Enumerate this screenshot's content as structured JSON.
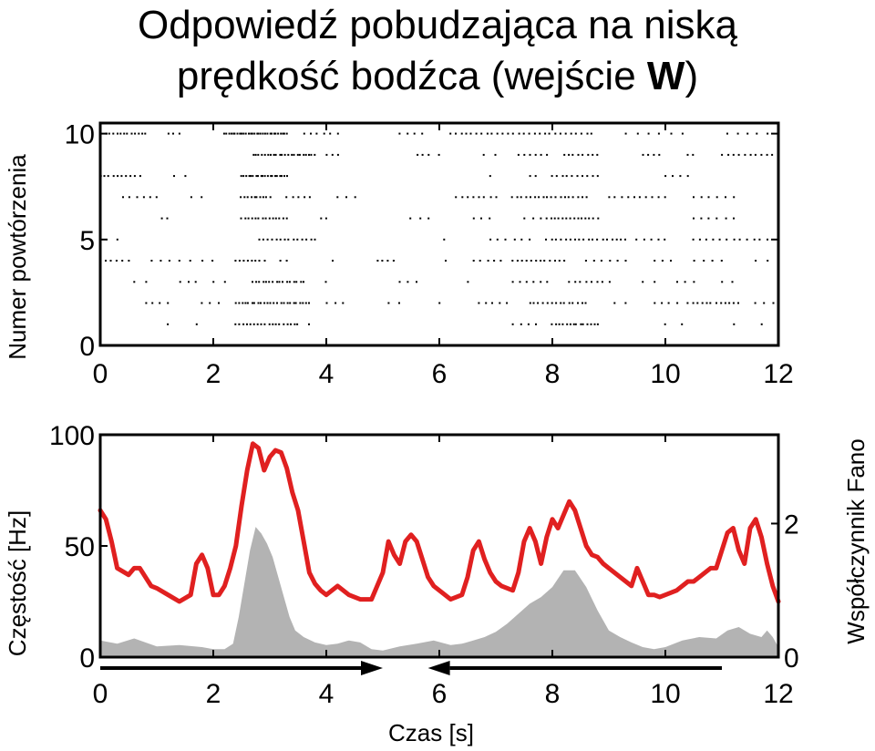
{
  "title": {
    "line1": "Odpowiedź pobudzająca na niską",
    "line2_main": "prędkość bodźca  (wejście ",
    "line2_bold": "W",
    "line2_end": ")"
  },
  "colors": {
    "rate_line": "#e02020",
    "fano_fill": "#b3b3b3",
    "spike": "#000000",
    "arrow": "#000000"
  },
  "chart_data": [
    {
      "type": "scatter",
      "title": "",
      "ylabel": "Numer powtórzenia",
      "xlim": [
        0,
        12
      ],
      "ylim": [
        0,
        10.5
      ],
      "xticks": [
        "0",
        "2",
        "4",
        "6",
        "8",
        "10",
        "12"
      ],
      "yticks": [
        "0",
        "5",
        "10"
      ],
      "yticks_values": [
        0,
        5,
        10
      ],
      "trials": [
        {
          "trial": 10,
          "bursts": [
            [
              0.1,
              0.8,
              12
            ],
            [
              1.2,
              1.4,
              3
            ],
            [
              2.2,
              3.3,
              30
            ],
            [
              3.6,
              4.2,
              6
            ],
            [
              5.3,
              5.7,
              4
            ],
            [
              6.2,
              8.7,
              28
            ],
            [
              9.3,
              9.9,
              4
            ],
            [
              10.1,
              10.3,
              2
            ],
            [
              11.1,
              11.8,
              5
            ]
          ]
        },
        {
          "trial": 9,
          "bursts": [
            [
              2.7,
              3.8,
              22
            ],
            [
              4.0,
              4.2,
              3
            ],
            [
              5.6,
              5.8,
              3
            ],
            [
              6.0,
              6.1,
              1
            ],
            [
              6.8,
              7.0,
              2
            ],
            [
              7.4,
              7.9,
              6
            ],
            [
              8.2,
              8.8,
              8
            ],
            [
              9.6,
              9.9,
              4
            ],
            [
              10.4,
              10.5,
              2
            ],
            [
              11.0,
              11.9,
              10
            ]
          ]
        },
        {
          "trial": 8,
          "bursts": [
            [
              0.0,
              0.7,
              10
            ],
            [
              1.3,
              1.5,
              2
            ],
            [
              2.5,
              3.3,
              20
            ],
            [
              6.9,
              7.0,
              1
            ],
            [
              7.6,
              7.7,
              2
            ],
            [
              8.0,
              8.8,
              10
            ],
            [
              10.0,
              10.4,
              4
            ]
          ]
        },
        {
          "trial": 7,
          "bursts": [
            [
              0.4,
              1.0,
              6
            ],
            [
              1.6,
              1.8,
              2
            ],
            [
              2.5,
              3.0,
              10
            ],
            [
              3.3,
              3.7,
              5
            ],
            [
              4.2,
              4.5,
              3
            ],
            [
              6.3,
              7.0,
              8
            ],
            [
              7.3,
              8.6,
              18
            ],
            [
              9.0,
              10.0,
              10
            ],
            [
              10.5,
              11.2,
              6
            ]
          ]
        },
        {
          "trial": 6,
          "bursts": [
            [
              1.1,
              1.2,
              2
            ],
            [
              2.5,
              3.3,
              14
            ],
            [
              3.9,
              4.0,
              2
            ],
            [
              5.5,
              5.8,
              3
            ],
            [
              6.6,
              6.9,
              3
            ],
            [
              7.5,
              7.8,
              3
            ],
            [
              7.9,
              8.8,
              14
            ],
            [
              10.5,
              11.2,
              6
            ]
          ]
        },
        {
          "trial": 5,
          "bursts": [
            [
              0.3,
              0.4,
              1
            ],
            [
              2.8,
              3.8,
              14
            ],
            [
              6.1,
              6.2,
              1
            ],
            [
              6.9,
              7.6,
              6
            ],
            [
              7.9,
              9.3,
              18
            ],
            [
              9.5,
              10.0,
              5
            ],
            [
              10.5,
              11.8,
              12
            ]
          ]
        },
        {
          "trial": 4,
          "bursts": [
            [
              0.0,
              0.5,
              6
            ],
            [
              0.9,
              1.4,
              4
            ],
            [
              1.6,
              2.0,
              3
            ],
            [
              2.4,
              2.9,
              8
            ],
            [
              3.2,
              3.3,
              2
            ],
            [
              4.1,
              4.2,
              1
            ],
            [
              4.9,
              5.2,
              4
            ],
            [
              6.1,
              6.2,
              1
            ],
            [
              6.6,
              7.1,
              5
            ],
            [
              7.3,
              8.2,
              12
            ],
            [
              8.6,
              9.3,
              6
            ],
            [
              9.8,
              10.1,
              3
            ],
            [
              10.5,
              11.0,
              4
            ],
            [
              11.6,
              11.8,
              2
            ]
          ]
        },
        {
          "trial": 3,
          "bursts": [
            [
              0.6,
              0.8,
              2
            ],
            [
              1.4,
              1.7,
              3
            ],
            [
              2.0,
              2.2,
              2
            ],
            [
              2.7,
              3.6,
              16
            ],
            [
              4.0,
              4.1,
              1
            ],
            [
              5.3,
              5.6,
              3
            ],
            [
              6.5,
              6.6,
              1
            ],
            [
              7.3,
              7.9,
              6
            ],
            [
              8.3,
              9.0,
              8
            ],
            [
              9.6,
              9.8,
              2
            ],
            [
              10.2,
              10.5,
              3
            ],
            [
              11.0,
              11.2,
              2
            ]
          ]
        },
        {
          "trial": 2,
          "bursts": [
            [
              0.8,
              1.2,
              4
            ],
            [
              1.8,
              2.1,
              3
            ],
            [
              2.4,
              3.7,
              24
            ],
            [
              4.0,
              4.3,
              3
            ],
            [
              5.1,
              5.3,
              2
            ],
            [
              6.0,
              6.1,
              1
            ],
            [
              6.7,
              7.2,
              5
            ],
            [
              7.6,
              8.6,
              14
            ],
            [
              9.1,
              9.3,
              2
            ],
            [
              9.8,
              10.2,
              4
            ],
            [
              10.4,
              11.3,
              12
            ],
            [
              11.6,
              11.9,
              3
            ]
          ]
        },
        {
          "trial": 1,
          "bursts": [
            [
              1.2,
              1.3,
              1
            ],
            [
              1.7,
              1.8,
              1
            ],
            [
              2.4,
              3.5,
              18
            ],
            [
              3.7,
              3.8,
              1
            ],
            [
              7.3,
              7.7,
              4
            ],
            [
              8.0,
              8.8,
              14
            ],
            [
              10.0,
              10.1,
              1
            ],
            [
              10.3,
              10.4,
              1
            ],
            [
              11.2,
              11.3,
              1
            ],
            [
              11.7,
              11.8,
              1
            ]
          ]
        }
      ]
    },
    {
      "type": "line",
      "title": "",
      "xlabel": "Czas [s]",
      "ylabel": "Częstość [Hz]",
      "y2label": "Współczynnik Fano",
      "xlim": [
        0,
        12
      ],
      "ylim": [
        0,
        100
      ],
      "y2lim": [
        0,
        3.33
      ],
      "xticks": [
        "0",
        "2",
        "4",
        "6",
        "8",
        "10",
        "12"
      ],
      "yticks": [
        "0",
        "50",
        "100"
      ],
      "yticks_values": [
        0,
        50,
        100
      ],
      "y2ticks": [
        "0",
        "2"
      ],
      "y2ticks_values": [
        0,
        2
      ],
      "series": [
        {
          "kind": "rate_line",
          "x": [
            0.0,
            0.1,
            0.2,
            0.3,
            0.5,
            0.6,
            0.7,
            0.8,
            0.9,
            1.0,
            1.2,
            1.4,
            1.6,
            1.7,
            1.8,
            1.9,
            2.0,
            2.1,
            2.2,
            2.3,
            2.4,
            2.5,
            2.6,
            2.7,
            2.8,
            2.9,
            3.0,
            3.1,
            3.2,
            3.3,
            3.4,
            3.5,
            3.6,
            3.7,
            3.8,
            3.9,
            4.0,
            4.2,
            4.4,
            4.6,
            4.8,
            5.0,
            5.1,
            5.2,
            5.3,
            5.4,
            5.5,
            5.6,
            5.7,
            5.8,
            5.9,
            6.0,
            6.2,
            6.4,
            6.5,
            6.6,
            6.7,
            6.8,
            6.9,
            7.0,
            7.1,
            7.3,
            7.4,
            7.5,
            7.6,
            7.7,
            7.8,
            7.9,
            8.0,
            8.1,
            8.2,
            8.3,
            8.4,
            8.5,
            8.6,
            8.7,
            8.8,
            8.9,
            9.0,
            9.2,
            9.4,
            9.5,
            9.6,
            9.7,
            9.8,
            9.9,
            10.0,
            10.2,
            10.4,
            10.5,
            10.6,
            10.7,
            10.8,
            10.9,
            11.0,
            11.1,
            11.2,
            11.3,
            11.4,
            11.5,
            11.6,
            11.7,
            11.8,
            11.9,
            12.0
          ],
          "y": [
            66,
            62,
            52,
            40,
            37,
            40,
            40,
            36,
            32,
            31,
            28,
            25,
            28,
            42,
            46,
            40,
            28,
            28,
            32,
            40,
            50,
            68,
            84,
            96,
            94,
            84,
            90,
            93,
            92,
            85,
            74,
            66,
            52,
            38,
            33,
            30,
            28,
            32,
            28,
            26,
            26,
            38,
            52,
            46,
            42,
            52,
            55,
            52,
            44,
            36,
            32,
            30,
            26,
            28,
            36,
            48,
            52,
            44,
            38,
            34,
            32,
            30,
            38,
            52,
            58,
            52,
            42,
            54,
            62,
            58,
            64,
            70,
            66,
            58,
            50,
            46,
            45,
            42,
            40,
            36,
            32,
            40,
            34,
            28,
            28,
            27,
            28,
            30,
            34,
            34,
            36,
            38,
            40,
            40,
            48,
            56,
            58,
            48,
            42,
            58,
            62,
            54,
            42,
            32,
            25
          ]
        },
        {
          "kind": "fano_area",
          "x": [
            0.0,
            0.3,
            0.6,
            1.0,
            1.4,
            1.8,
            2.0,
            2.2,
            2.35,
            2.45,
            2.55,
            2.65,
            2.75,
            2.85,
            2.95,
            3.05,
            3.15,
            3.25,
            3.35,
            3.45,
            3.6,
            3.8,
            4.0,
            4.2,
            4.4,
            4.6,
            4.8,
            5.0,
            5.3,
            5.6,
            5.9,
            6.2,
            6.4,
            6.6,
            6.8,
            7.0,
            7.2,
            7.4,
            7.6,
            7.8,
            8.0,
            8.2,
            8.4,
            8.6,
            8.8,
            9.0,
            9.2,
            9.4,
            9.6,
            9.8,
            10.0,
            10.3,
            10.6,
            10.9,
            11.1,
            11.3,
            11.5,
            11.7,
            11.8,
            11.9,
            12.0
          ],
          "y": [
            0.25,
            0.2,
            0.28,
            0.16,
            0.18,
            0.15,
            0.12,
            0.12,
            0.2,
            0.6,
            1.1,
            1.6,
            1.95,
            1.85,
            1.7,
            1.5,
            1.2,
            0.9,
            0.6,
            0.4,
            0.3,
            0.22,
            0.18,
            0.2,
            0.25,
            0.22,
            0.12,
            0.1,
            0.16,
            0.2,
            0.25,
            0.18,
            0.2,
            0.25,
            0.3,
            0.38,
            0.5,
            0.65,
            0.8,
            0.9,
            1.05,
            1.3,
            1.3,
            1.05,
            0.7,
            0.4,
            0.3,
            0.22,
            0.15,
            0.12,
            0.15,
            0.25,
            0.3,
            0.28,
            0.4,
            0.45,
            0.35,
            0.3,
            0.4,
            0.3,
            0.15
          ]
        }
      ],
      "arrows": [
        {
          "from": 0,
          "to": 5.0
        },
        {
          "from": 11.0,
          "to": 5.8
        }
      ]
    }
  ]
}
